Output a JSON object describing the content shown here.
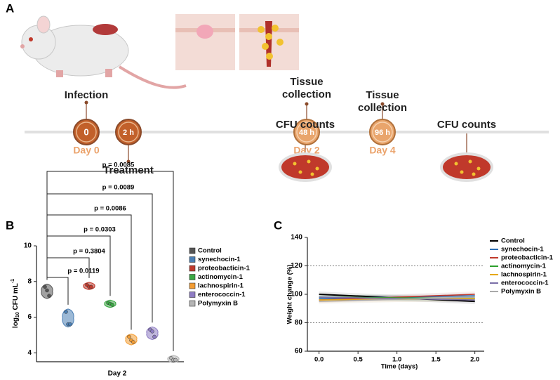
{
  "panel_labels": [
    "A",
    "B",
    "C"
  ],
  "timeline": {
    "labels": [
      "Infection",
      "Treatment",
      "Tissue collection",
      "Tissue collection"
    ],
    "times": [
      "0",
      "2 h",
      "48 h",
      "96 h"
    ],
    "days": [
      "Day 0",
      "Day 2",
      "Day 4"
    ],
    "results": [
      "CFU counts",
      "CFU counts"
    ]
  },
  "chart_data": [
    {
      "type": "violin",
      "y_label": {
        "base": "log",
        "sub": "10",
        "mid": " CFU mL",
        "sup": "-1"
      },
      "x_label": "Day 2",
      "ylim": [
        3.5,
        10
      ],
      "yticks": [
        4,
        6,
        8,
        10
      ],
      "series": [
        {
          "name": "Control",
          "color": "#555555",
          "values": [
            7.7,
            7.5,
            7.2
          ]
        },
        {
          "name": "synechocin-1",
          "color": "#4a7fb5",
          "values": [
            6.3,
            5.6,
            5.6
          ]
        },
        {
          "name": "proteobacticin-1",
          "color": "#c0392b",
          "values": [
            7.8,
            7.7,
            7.7
          ]
        },
        {
          "name": "actinomycin-1",
          "color": "#3aa843",
          "values": [
            6.8,
            6.75,
            6.7
          ]
        },
        {
          "name": "lachnospirin-1",
          "color": "#f39c32",
          "values": [
            4.9,
            4.7,
            4.6
          ]
        },
        {
          "name": "enterococcin-1",
          "color": "#8e7cc3",
          "values": [
            5.3,
            5.2,
            4.9
          ]
        },
        {
          "name": "Polymyxin B",
          "color": "#b5b5b5",
          "values": [
            3.7,
            3.6,
            3.6
          ]
        }
      ],
      "annotations": [
        "p = 0.0119",
        "p = 0.3804",
        "p = 0.0303",
        "p = 0.0086",
        "p = 0.0089",
        "p = 0.0085"
      ]
    },
    {
      "type": "line",
      "y_label": "Weight change (%)",
      "x_label": "Time (days)",
      "x": [
        0,
        2
      ],
      "xlim": [
        -0.15,
        2.12
      ],
      "xticks": [
        {
          "value": 0,
          "label": "0.0"
        },
        {
          "value": 0.5,
          "label": "0.5"
        },
        {
          "value": 1,
          "label": "1.0"
        },
        {
          "value": 1.5,
          "label": "1.5"
        },
        {
          "value": 2,
          "label": "2.0"
        }
      ],
      "ylim": [
        60,
        140
      ],
      "yticks": [
        60,
        80,
        100,
        120,
        140
      ],
      "grid": true,
      "series": [
        {
          "name": "Control",
          "color": "#000000",
          "values": [
            100,
            95
          ]
        },
        {
          "name": "synechocin-1",
          "color": "#2c6fb5",
          "values": [
            97,
            99
          ]
        },
        {
          "name": "proteobacticin-1",
          "color": "#c0392b",
          "values": [
            96,
            100
          ]
        },
        {
          "name": "actinomycin-1",
          "color": "#2ca02c",
          "values": [
            98,
            97
          ]
        },
        {
          "name": "lachnospirin-1",
          "color": "#e6a817",
          "values": [
            96,
            97
          ]
        },
        {
          "name": "enterococcin-1",
          "color": "#7b6fa8",
          "values": [
            98,
            96
          ]
        },
        {
          "name": "Polymyxin B",
          "color": "#aaaaaa",
          "values": [
            95,
            98
          ]
        }
      ]
    }
  ]
}
